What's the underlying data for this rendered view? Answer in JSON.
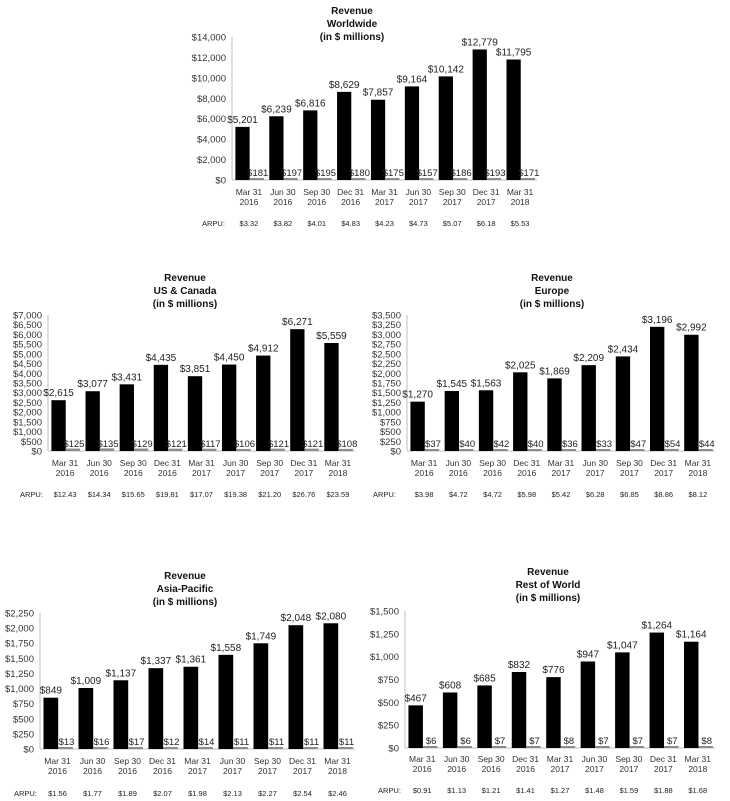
{
  "chart_data": [
    {
      "type": "bar",
      "title": [
        "Revenue",
        "Worldwide",
        "(in $ millions)"
      ],
      "categories": [
        [
          "Mar 31",
          "2016"
        ],
        [
          "Jun 30",
          "2016"
        ],
        [
          "Sep 30",
          "2016"
        ],
        [
          "Dec 31",
          "2016"
        ],
        [
          "Mar 31",
          "2017"
        ],
        [
          "Jun 30",
          "2017"
        ],
        [
          "Sep 30",
          "2017"
        ],
        [
          "Dec 31",
          "2017"
        ],
        [
          "Mar 31",
          "2018"
        ]
      ],
      "values": [
        5201,
        6239,
        6816,
        8629,
        7857,
        9164,
        10142,
        12779,
        11795
      ],
      "value_labels": [
        "$5,201",
        "$6,239",
        "$6,816",
        "$8,629",
        "$7,857",
        "$9,164",
        "$10,142",
        "$12,779",
        "$11,795"
      ],
      "small_values": [
        181,
        197,
        195,
        180,
        175,
        157,
        186,
        193,
        171
      ],
      "small_labels": [
        "$181",
        "$197",
        "$195",
        "$180",
        "$175",
        "$157",
        "$186",
        "$193",
        "$171"
      ],
      "ylim": [
        0,
        14000
      ],
      "yticks": [
        "$0",
        "$2,000",
        "$4,000",
        "$6,000",
        "$8,000",
        "$10,000",
        "$12,000",
        "$14,000"
      ],
      "arpu_label": "ARPU:",
      "arpu": [
        "$3.32",
        "$3.82",
        "$4.01",
        "$4.83",
        "$4.23",
        "$4.73",
        "$5.07",
        "$6.18",
        "$5.53"
      ]
    },
    {
      "type": "bar",
      "title": [
        "Revenue",
        "US & Canada",
        "(in $ millions)"
      ],
      "categories": [
        [
          "Mar 31",
          "2016"
        ],
        [
          "Jun 30",
          "2016"
        ],
        [
          "Sep 30",
          "2016"
        ],
        [
          "Dec 31",
          "2016"
        ],
        [
          "Mar 31",
          "2017"
        ],
        [
          "Jun 30",
          "2017"
        ],
        [
          "Sep 30",
          "2017"
        ],
        [
          "Dec 31",
          "2017"
        ],
        [
          "Mar 31",
          "2018"
        ]
      ],
      "values": [
        2615,
        3077,
        3431,
        4435,
        3851,
        4450,
        4912,
        6271,
        5559
      ],
      "value_labels": [
        "$2,615",
        "$3,077",
        "$3,431",
        "$4,435",
        "$3,851",
        "$4,450",
        "$4,912",
        "$6,271",
        "$5,559"
      ],
      "small_values": [
        125,
        135,
        129,
        121,
        117,
        106,
        121,
        121,
        108
      ],
      "small_labels": [
        "$125",
        "$135",
        "$129",
        "$121",
        "$117",
        "$106",
        "$121",
        "$121",
        "$108"
      ],
      "ylim": [
        0,
        7000
      ],
      "yticks": [
        "$0",
        "$500",
        "$1,000",
        "$1,500",
        "$2,000",
        "$2,500",
        "$3,000",
        "$3,500",
        "$4,000",
        "$4,500",
        "$5,000",
        "$5,500",
        "$6,000",
        "$6,500",
        "$7,000"
      ],
      "arpu_label": "ARPU:",
      "arpu": [
        "$12.43",
        "$14.34",
        "$15.65",
        "$19.81",
        "$17.07",
        "$19.38",
        "$21.20",
        "$26.76",
        "$23.59"
      ]
    },
    {
      "type": "bar",
      "title": [
        "Revenue",
        "Europe",
        "(in $ millions)"
      ],
      "categories": [
        [
          "Mar 31",
          "2016"
        ],
        [
          "Jun 30",
          "2016"
        ],
        [
          "Sep 30",
          "2016"
        ],
        [
          "Dec 31",
          "2016"
        ],
        [
          "Mar 31",
          "2017"
        ],
        [
          "Jun 30",
          "2017"
        ],
        [
          "Sep 30",
          "2017"
        ],
        [
          "Dec 31",
          "2017"
        ],
        [
          "Mar 31",
          "2018"
        ]
      ],
      "values": [
        1270,
        1545,
        1563,
        2025,
        1869,
        2209,
        2434,
        3196,
        2992
      ],
      "value_labels": [
        "$1,270",
        "$1,545",
        "$1,563",
        "$2,025",
        "$1,869",
        "$2,209",
        "$2,434",
        "$3,196",
        "$2,992"
      ],
      "small_values": [
        37,
        40,
        42,
        40,
        36,
        33,
        47,
        54,
        44
      ],
      "small_labels": [
        "$37",
        "$40",
        "$42",
        "$40",
        "$36",
        "$33",
        "$47",
        "$54",
        "$44"
      ],
      "ylim": [
        0,
        3500
      ],
      "yticks": [
        "$0",
        "$250",
        "$500",
        "$750",
        "$1,000",
        "$1,250",
        "$1,500",
        "$1,750",
        "$2,000",
        "$2,250",
        "$2,500",
        "$2,750",
        "$3,000",
        "$3,250",
        "$3,500"
      ],
      "arpu_label": "ARPU:",
      "arpu": [
        "$3.98",
        "$4.72",
        "$4.72",
        "$5.98",
        "$5.42",
        "$6.28",
        "$6.85",
        "$8.86",
        "$8.12"
      ]
    },
    {
      "type": "bar",
      "title": [
        "Revenue",
        "Asia-Pacific",
        "(in $ millions)"
      ],
      "categories": [
        [
          "Mar 31",
          "2016"
        ],
        [
          "Jun 30",
          "2016"
        ],
        [
          "Sep 30",
          "2016"
        ],
        [
          "Dec 31",
          "2016"
        ],
        [
          "Mar 31",
          "2017"
        ],
        [
          "Jun 30",
          "2017"
        ],
        [
          "Sep 30",
          "2017"
        ],
        [
          "Dec 31",
          "2017"
        ],
        [
          "Mar 31",
          "2018"
        ]
      ],
      "values": [
        849,
        1009,
        1137,
        1337,
        1361,
        1558,
        1749,
        2048,
        2080
      ],
      "value_labels": [
        "$849",
        "$1,009",
        "$1,137",
        "$1,337",
        "$1,361",
        "$1,558",
        "$1,749",
        "$2,048",
        "$2,080"
      ],
      "small_values": [
        13,
        16,
        17,
        12,
        14,
        11,
        11,
        11,
        11
      ],
      "small_labels": [
        "$13",
        "$16",
        "$17",
        "$12",
        "$14",
        "$11",
        "$11",
        "$11",
        "$11"
      ],
      "ylim": [
        0,
        2250
      ],
      "yticks": [
        "$0",
        "$250",
        "$500",
        "$750",
        "$1,000",
        "$1,250",
        "$1,500",
        "$1,750",
        "$2,000",
        "$2,250"
      ],
      "arpu_label": "ARPU:",
      "arpu": [
        "$1.56",
        "$1.77",
        "$1.89",
        "$2.07",
        "$1.98",
        "$2.13",
        "$2.27",
        "$2.54",
        "$2.46"
      ]
    },
    {
      "type": "bar",
      "title": [
        "Revenue",
        "Rest of World",
        "(in $ millions)"
      ],
      "categories": [
        [
          "Mar 31",
          "2016"
        ],
        [
          "Jun 30",
          "2016"
        ],
        [
          "Sep 30",
          "2016"
        ],
        [
          "Dec 31",
          "2016"
        ],
        [
          "Mar 31",
          "2017"
        ],
        [
          "Jun 30",
          "2017"
        ],
        [
          "Sep 30",
          "2017"
        ],
        [
          "Dec 31",
          "2017"
        ],
        [
          "Mar 31",
          "2018"
        ]
      ],
      "values": [
        467,
        608,
        685,
        832,
        776,
        947,
        1047,
        1264,
        1164
      ],
      "value_labels": [
        "$467",
        "$608",
        "$685",
        "$832",
        "$776",
        "$947",
        "$1,047",
        "$1,264",
        "$1,164"
      ],
      "small_values": [
        6,
        6,
        7,
        7,
        8,
        7,
        7,
        7,
        8
      ],
      "small_labels": [
        "$6",
        "$6",
        "$7",
        "$7",
        "$8",
        "$7",
        "$7",
        "$7",
        "$8"
      ],
      "ylim": [
        0,
        1500
      ],
      "yticks": [
        "$0",
        "$250",
        "$500",
        "$750",
        "$1,000",
        "$1,250",
        "$1,500"
      ],
      "arpu_label": "ARPU:",
      "arpu": [
        "$0.91",
        "$1.13",
        "$1.21",
        "$1.41",
        "$1.27",
        "$1.48",
        "$1.59",
        "$1.88",
        "$1.68"
      ]
    }
  ],
  "colors": {
    "bar": "#000000",
    "small_bar": "#8c8c8c",
    "axis": "#bfbfbf"
  }
}
